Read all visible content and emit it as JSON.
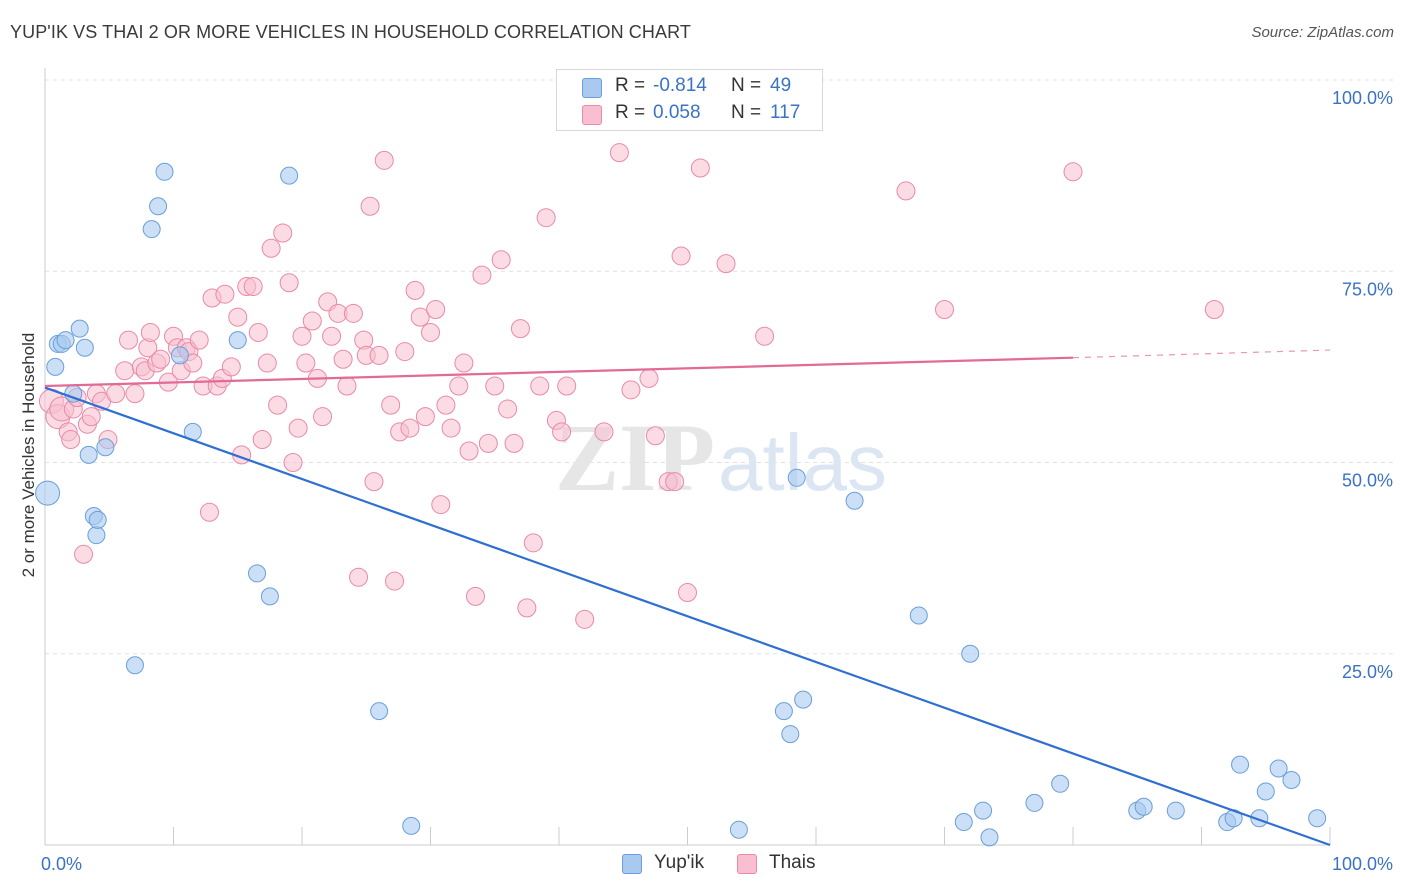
{
  "title": "YUP'IK VS THAI 2 OR MORE VEHICLES IN HOUSEHOLD CORRELATION CHART",
  "source": "Source: ZipAtlas.com",
  "watermark": {
    "zip": "ZIP",
    "atlas": "atlas"
  },
  "legend": {
    "r_label": "R =",
    "n_label": "N =",
    "series": [
      {
        "name": "Yup'ik",
        "r": "-0.814",
        "n": "49",
        "color": "#a9c9f0",
        "stroke": "#6a9fd8"
      },
      {
        "name": "Thais",
        "r": "0.058",
        "n": "117",
        "color": "#f8bfd0",
        "stroke": "#e88aa8"
      }
    ]
  },
  "chart_data": {
    "type": "scatter",
    "title": "YUP'IK VS THAI 2 OR MORE VEHICLES IN HOUSEHOLD CORRELATION CHART",
    "xlabel": "",
    "ylabel": "2 or more Vehicles in Household",
    "xlim": [
      0,
      100
    ],
    "ylim": [
      0,
      100
    ],
    "x_tick_labels": [
      "0.0%",
      "100.0%"
    ],
    "y_tick_labels": [
      "25.0%",
      "50.0%",
      "75.0%",
      "100.0%"
    ],
    "y_ticks": [
      25,
      50,
      75,
      100
    ],
    "grid": true,
    "legend_position": "top-center",
    "series": [
      {
        "name": "Yup'ik",
        "color": "#a9c9f0",
        "line_color": "#2e6fd0",
        "trend": {
          "x": [
            0,
            100
          ],
          "y": [
            59.8,
            0
          ]
        },
        "points": [
          [
            0.2,
            46
          ],
          [
            0.8,
            62.5
          ],
          [
            1,
            65.5
          ],
          [
            1.3,
            65.5
          ],
          [
            1.6,
            66
          ],
          [
            2.2,
            59
          ],
          [
            2.7,
            67.5
          ],
          [
            3.1,
            65
          ],
          [
            3.4,
            51
          ],
          [
            3.8,
            43
          ],
          [
            4,
            40.5
          ],
          [
            4.1,
            42.5
          ],
          [
            4.7,
            52
          ],
          [
            7,
            23.5
          ],
          [
            8.3,
            80.5
          ],
          [
            8.8,
            83.5
          ],
          [
            9.3,
            88
          ],
          [
            10.5,
            64
          ],
          [
            11.5,
            54
          ],
          [
            15,
            66
          ],
          [
            16.5,
            35.5
          ],
          [
            17.5,
            32.5
          ],
          [
            19,
            87.5
          ],
          [
            26,
            17.5
          ],
          [
            28.5,
            2.5
          ],
          [
            54,
            2
          ],
          [
            57.5,
            17.5
          ],
          [
            58,
            14.5
          ],
          [
            58.5,
            48
          ],
          [
            59,
            19
          ],
          [
            63,
            45
          ],
          [
            68,
            30
          ],
          [
            71.5,
            3
          ],
          [
            72,
            25
          ],
          [
            73,
            4.5
          ],
          [
            73.5,
            1
          ],
          [
            77,
            5.5
          ],
          [
            79,
            8
          ],
          [
            85,
            4.5
          ],
          [
            85.5,
            5
          ],
          [
            88,
            4.5
          ],
          [
            92,
            3
          ],
          [
            92.5,
            3.5
          ],
          [
            93,
            10.5
          ],
          [
            94.5,
            3.5
          ],
          [
            95,
            7
          ],
          [
            96,
            10
          ],
          [
            97,
            8.5
          ],
          [
            99,
            3.5
          ]
        ]
      },
      {
        "name": "Thais",
        "color": "#f8bfd0",
        "line_color": "#e26a96",
        "trend": {
          "x": [
            0,
            80
          ],
          "y": [
            60,
            63.7
          ]
        },
        "trend_dashed": {
          "x": [
            80,
            100
          ],
          "y": [
            63.7,
            64.7
          ]
        },
        "points": [
          [
            0.5,
            58
          ],
          [
            1,
            56
          ],
          [
            1.3,
            57
          ],
          [
            1.8,
            54
          ],
          [
            2,
            53
          ],
          [
            2.2,
            57
          ],
          [
            2.5,
            58.5
          ],
          [
            3,
            38
          ],
          [
            3.3,
            55
          ],
          [
            3.6,
            56
          ],
          [
            4,
            59
          ],
          [
            4.4,
            58
          ],
          [
            4.9,
            53
          ],
          [
            5.5,
            59
          ],
          [
            6.2,
            62
          ],
          [
            6.5,
            66
          ],
          [
            7,
            59
          ],
          [
            7.5,
            62.5
          ],
          [
            7.8,
            62
          ],
          [
            8,
            65
          ],
          [
            8.2,
            67
          ],
          [
            8.7,
            63
          ],
          [
            9,
            63.5
          ],
          [
            9.6,
            60.5
          ],
          [
            10,
            66.5
          ],
          [
            10.3,
            65
          ],
          [
            10.6,
            62
          ],
          [
            11,
            65
          ],
          [
            11.2,
            64.5
          ],
          [
            11.5,
            63
          ],
          [
            12,
            66
          ],
          [
            12.3,
            60
          ],
          [
            12.8,
            43.5
          ],
          [
            13,
            71.5
          ],
          [
            13.4,
            60
          ],
          [
            13.8,
            61
          ],
          [
            14,
            72
          ],
          [
            14.5,
            62.5
          ],
          [
            15,
            69
          ],
          [
            15.3,
            51
          ],
          [
            15.7,
            73
          ],
          [
            16.2,
            73
          ],
          [
            16.6,
            67
          ],
          [
            16.9,
            53
          ],
          [
            17.3,
            63
          ],
          [
            17.6,
            78
          ],
          [
            18.1,
            57.5
          ],
          [
            18.5,
            80
          ],
          [
            19,
            73.5
          ],
          [
            19.3,
            50
          ],
          [
            19.7,
            54.5
          ],
          [
            20,
            66.5
          ],
          [
            20.3,
            63
          ],
          [
            20.8,
            68.5
          ],
          [
            21.2,
            61
          ],
          [
            21.6,
            56
          ],
          [
            22,
            71
          ],
          [
            22.3,
            66.5
          ],
          [
            22.8,
            69.5
          ],
          [
            23.2,
            63.5
          ],
          [
            23.5,
            60
          ],
          [
            24,
            69.5
          ],
          [
            24.4,
            35
          ],
          [
            24.8,
            66
          ],
          [
            25,
            64
          ],
          [
            25.3,
            83.5
          ],
          [
            25.6,
            47.5
          ],
          [
            26,
            64
          ],
          [
            26.4,
            89.5
          ],
          [
            26.9,
            57.5
          ],
          [
            27.2,
            34.5
          ],
          [
            27.6,
            54
          ],
          [
            28,
            64.5
          ],
          [
            28.4,
            54.5
          ],
          [
            28.8,
            72.5
          ],
          [
            29.2,
            69
          ],
          [
            29.6,
            56
          ],
          [
            30,
            67
          ],
          [
            30.4,
            70
          ],
          [
            30.8,
            44.5
          ],
          [
            31.2,
            57.5
          ],
          [
            31.6,
            54.5
          ],
          [
            32.2,
            60
          ],
          [
            32.6,
            63
          ],
          [
            33,
            51.5
          ],
          [
            33.5,
            32.5
          ],
          [
            34,
            74.5
          ],
          [
            34.5,
            52.5
          ],
          [
            35,
            60
          ],
          [
            35.5,
            76.5
          ],
          [
            36,
            57
          ],
          [
            36.5,
            52.5
          ],
          [
            37,
            67.5
          ],
          [
            37.5,
            31
          ],
          [
            38,
            39.5
          ],
          [
            38.5,
            60
          ],
          [
            39,
            82
          ],
          [
            39.8,
            55.5
          ],
          [
            40.2,
            54
          ],
          [
            40.6,
            60
          ],
          [
            42,
            29.5
          ],
          [
            43.5,
            54
          ],
          [
            44.7,
            90.5
          ],
          [
            45.6,
            59.5
          ],
          [
            47,
            61
          ],
          [
            47.5,
            53.5
          ],
          [
            48.5,
            47.5
          ],
          [
            49,
            47.5
          ],
          [
            49.5,
            77
          ],
          [
            50,
            33
          ],
          [
            51,
            88.5
          ],
          [
            53,
            76
          ],
          [
            56,
            66.5
          ],
          [
            67,
            85.5
          ],
          [
            70,
            70
          ],
          [
            80,
            88
          ],
          [
            91,
            70
          ]
        ]
      }
    ]
  }
}
